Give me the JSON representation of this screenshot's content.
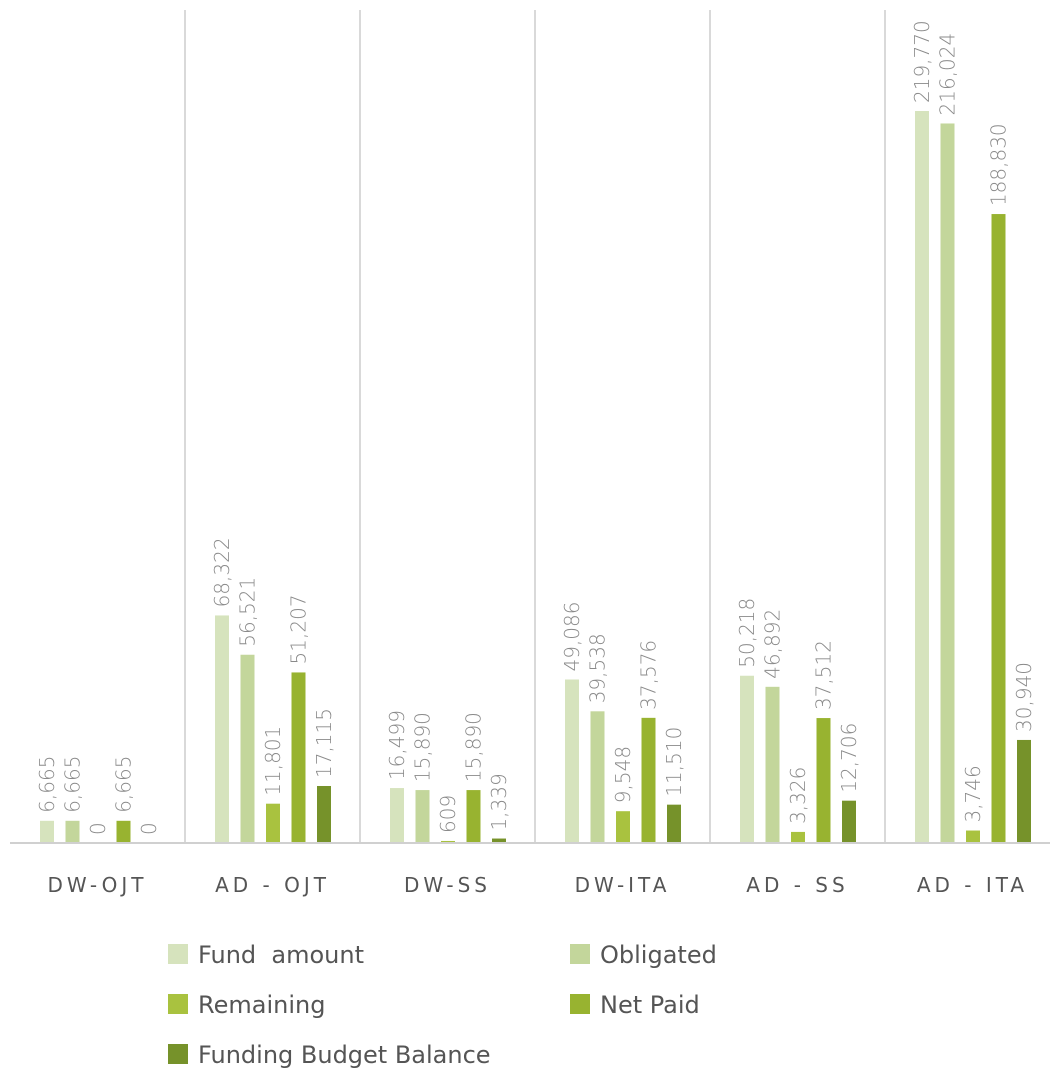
{
  "chart_data": {
    "type": "bar",
    "title": "",
    "xlabel": "",
    "ylabel": "",
    "categories": [
      "DW-OJT",
      "AD - OJT",
      "DW-SS",
      "DW-ITA",
      "AD - SS",
      "AD - ITA"
    ],
    "ylim": [
      0,
      240000
    ],
    "grid": "vertical separators between categories",
    "legend_position": "bottom",
    "series": [
      {
        "name": "Fund  amount",
        "color": "#d6e3bd",
        "values": [
          6665,
          68322,
          16499,
          49086,
          50218,
          219770
        ],
        "labels": [
          "6,665",
          "68,322",
          "16,499",
          "49,086",
          "50,218",
          "219,770"
        ]
      },
      {
        "name": "Obligated",
        "color": "#c3d69b",
        "values": [
          6665,
          56521,
          15890,
          39538,
          46892,
          216024
        ],
        "labels": [
          "6,665",
          "56,521",
          "15,890",
          "39,538",
          "46,892",
          "216,024"
        ]
      },
      {
        "name": "Remaining",
        "color": "#a9c23f",
        "values": [
          0,
          11801,
          609,
          9548,
          3326,
          3746
        ],
        "labels": [
          "0",
          "11,801",
          "609",
          "9,548",
          "3,326",
          "3,746"
        ]
      },
      {
        "name": "Net Paid",
        "color": "#98b330",
        "values": [
          6665,
          51207,
          15890,
          37576,
          37512,
          188830
        ],
        "labels": [
          "6,665",
          "51,207",
          "15,890",
          "37,576",
          "37,512",
          "188,830"
        ]
      },
      {
        "name": "Funding Budget Balance",
        "color": "#76922a",
        "values": [
          0,
          17115,
          1339,
          11510,
          12706,
          30940
        ],
        "labels": [
          "0",
          "17,115",
          "1,339",
          "11,510",
          "12,706",
          "30,940"
        ]
      }
    ]
  }
}
